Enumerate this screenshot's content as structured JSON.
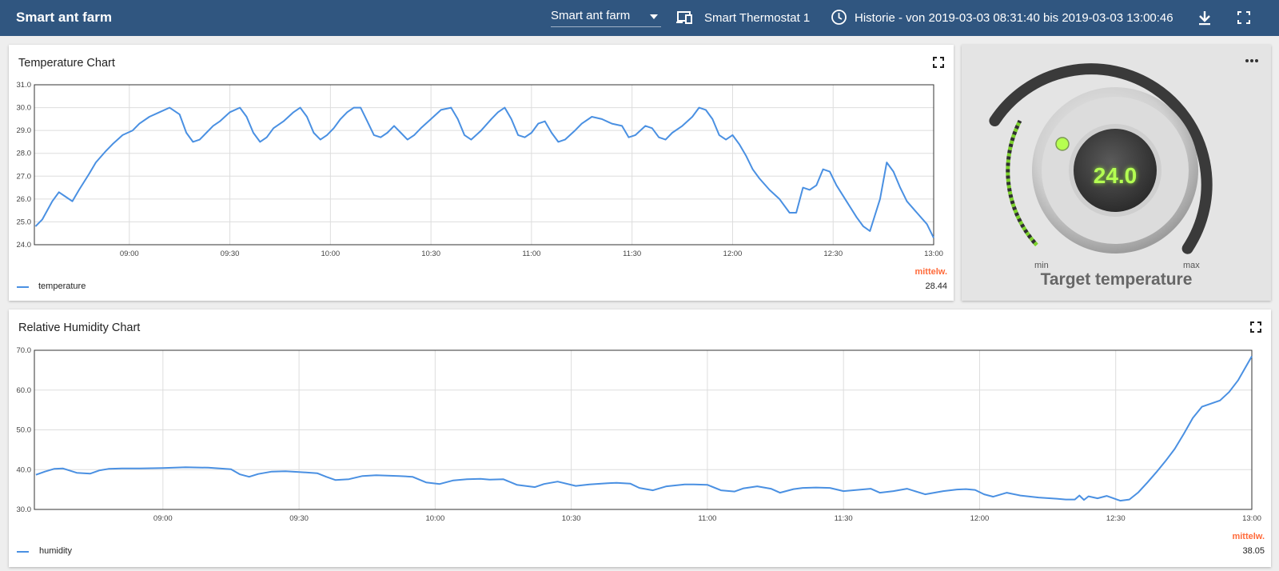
{
  "header": {
    "title": "Smart ant farm",
    "dashboard_select": {
      "value": "Smart ant farm"
    },
    "device": {
      "icon": "devices-icon",
      "label": "Smart Thermostat 1"
    },
    "history": {
      "icon": "clock-icon",
      "label": "Historie - von 2019-03-03 08:31:40 bis 2019-03-03 13:00:46"
    },
    "actions": {
      "download_icon": "download-icon",
      "fullscreen_icon": "fullscreen-icon"
    }
  },
  "temperature_card": {
    "title": "Temperature Chart",
    "legend": "temperature",
    "avg_label": "mittelw.",
    "avg_value": "28.44"
  },
  "humidity_card": {
    "title": "Relative Humidity Chart",
    "legend": "humidity",
    "avg_label": "mittelw.",
    "avg_value": "38.05"
  },
  "thermostat": {
    "value": "24.0",
    "min_label": "min",
    "max_label": "max",
    "label": "Target temperature"
  },
  "colors": {
    "header_bg": "#305680",
    "series": "#4a90e2",
    "avg_label": "#ff6a3a",
    "thermo_value": "#b4ff52"
  },
  "chart_data": [
    {
      "type": "line",
      "title": "Temperature Chart",
      "x_ticks": [
        "09:00",
        "09:30",
        "10:00",
        "10:30",
        "11:00",
        "11:30",
        "12:00",
        "12:30",
        "13:00"
      ],
      "y_ticks": [
        "24.0",
        "25.0",
        "26.0",
        "27.0",
        "28.0",
        "29.0",
        "30.0",
        "31.0"
      ],
      "ylim": [
        24,
        31
      ],
      "xlim": [
        "08:31:40",
        "13:00:00"
      ],
      "grid": true,
      "legend": "bottom-left",
      "series": [
        {
          "name": "temperature",
          "x": [
            "08:32",
            "08:34",
            "08:37",
            "08:39",
            "08:41",
            "08:43",
            "08:45",
            "08:48",
            "08:50",
            "08:53",
            "08:55",
            "08:58",
            "09:01",
            "09:03",
            "09:06",
            "09:09",
            "09:12",
            "09:15",
            "09:17",
            "09:19",
            "09:21",
            "09:23",
            "09:25",
            "09:27",
            "09:30",
            "09:33",
            "09:35",
            "09:37",
            "09:39",
            "09:41",
            "09:43",
            "09:46",
            "09:49",
            "09:51",
            "09:53",
            "09:55",
            "09:57",
            "09:59",
            "10:01",
            "10:03",
            "10:05",
            "10:07",
            "10:09",
            "10:11",
            "10:13",
            "10:15",
            "10:17",
            "10:19",
            "10:21",
            "10:23",
            "10:25",
            "10:27",
            "10:30",
            "10:33",
            "10:36",
            "10:38",
            "10:40",
            "10:42",
            "10:45",
            "10:48",
            "10:50",
            "10:52",
            "10:54",
            "10:56",
            "10:58",
            "11:00",
            "11:02",
            "11:04",
            "11:06",
            "11:08",
            "11:10",
            "11:13",
            "11:15",
            "11:18",
            "11:21",
            "11:24",
            "11:27",
            "11:29",
            "11:31",
            "11:34",
            "11:36",
            "11:38",
            "11:40",
            "11:42",
            "11:45",
            "11:48",
            "11:50",
            "11:52",
            "11:54",
            "11:56",
            "11:58",
            "12:00",
            "12:02",
            "12:04",
            "12:06",
            "12:08",
            "12:11",
            "12:14",
            "12:17",
            "12:19",
            "12:21",
            "12:23",
            "12:25",
            "12:27",
            "12:29",
            "12:31",
            "12:34",
            "12:37",
            "12:39",
            "12:41",
            "12:44",
            "12:46",
            "12:48",
            "12:50",
            "12:52",
            "12:55",
            "12:58",
            "13:00"
          ],
          "y": [
            24.8,
            25.1,
            25.9,
            26.3,
            26.1,
            25.9,
            26.4,
            27.1,
            27.6,
            28.1,
            28.4,
            28.8,
            29.0,
            29.3,
            29.6,
            29.8,
            30.0,
            29.7,
            28.9,
            28.5,
            28.6,
            28.9,
            29.2,
            29.4,
            29.8,
            30.0,
            29.6,
            28.9,
            28.5,
            28.7,
            29.1,
            29.4,
            29.8,
            30.0,
            29.6,
            28.9,
            28.6,
            28.8,
            29.1,
            29.5,
            29.8,
            30.0,
            30.0,
            29.4,
            28.8,
            28.7,
            28.9,
            29.2,
            28.9,
            28.6,
            28.8,
            29.1,
            29.5,
            29.9,
            30.0,
            29.5,
            28.8,
            28.6,
            29.0,
            29.5,
            29.8,
            30.0,
            29.5,
            28.8,
            28.7,
            28.9,
            29.3,
            29.4,
            28.9,
            28.5,
            28.6,
            29.0,
            29.3,
            29.6,
            29.5,
            29.3,
            29.2,
            28.7,
            28.8,
            29.2,
            29.1,
            28.7,
            28.6,
            28.9,
            29.2,
            29.6,
            30.0,
            29.9,
            29.5,
            28.8,
            28.6,
            28.8,
            28.4,
            27.9,
            27.3,
            26.9,
            26.4,
            26.0,
            25.4,
            25.4,
            26.5,
            26.4,
            26.6,
            27.3,
            27.2,
            26.6,
            25.9,
            25.2,
            24.8,
            24.6,
            26.0,
            27.6,
            27.2,
            26.5,
            25.9,
            25.4,
            24.9,
            24.3
          ]
        }
      ]
    },
    {
      "type": "line",
      "title": "Relative Humidity Chart",
      "x_ticks": [
        "09:00",
        "09:30",
        "10:00",
        "10:30",
        "11:00",
        "11:30",
        "12:00",
        "12:30",
        "13:00"
      ],
      "y_ticks": [
        "30.0",
        "40.0",
        "50.0",
        "60.0",
        "70.0"
      ],
      "ylim": [
        30,
        70
      ],
      "xlim": [
        "08:31:40",
        "13:00:00"
      ],
      "grid": true,
      "legend": "bottom-left",
      "series": [
        {
          "name": "humidity",
          "x": [
            "08:32",
            "08:34",
            "08:36",
            "08:38",
            "08:41",
            "08:44",
            "08:46",
            "08:48",
            "08:51",
            "08:55",
            "09:00",
            "09:05",
            "09:10",
            "09:15",
            "09:17",
            "09:19",
            "09:21",
            "09:24",
            "09:27",
            "09:30",
            "09:34",
            "09:36",
            "09:38",
            "09:41",
            "09:44",
            "09:47",
            "09:52",
            "09:55",
            "09:58",
            "10:01",
            "10:04",
            "10:07",
            "10:10",
            "10:12",
            "10:15",
            "10:18",
            "10:22",
            "10:24",
            "10:27",
            "10:31",
            "10:34",
            "10:38",
            "10:40",
            "10:43",
            "10:45",
            "10:48",
            "10:51",
            "10:55",
            "10:57",
            "11:00",
            "11:03",
            "11:06",
            "11:08",
            "11:11",
            "11:14",
            "11:16",
            "11:19",
            "11:21",
            "11:24",
            "11:27",
            "11:30",
            "11:33",
            "11:36",
            "11:38",
            "11:41",
            "11:44",
            "11:48",
            "11:52",
            "11:55",
            "11:57",
            "11:59",
            "12:01",
            "12:03",
            "12:06",
            "12:09",
            "12:13",
            "12:17",
            "12:19",
            "12:21",
            "12:22",
            "12:23",
            "12:24",
            "12:26",
            "12:28",
            "12:30",
            "12:31",
            "12:33",
            "12:35",
            "12:37",
            "12:39",
            "12:41",
            "12:43",
            "12:45",
            "12:47",
            "12:49",
            "12:51",
            "12:53",
            "12:55",
            "12:57",
            "13:00"
          ],
          "y": [
            38.7,
            39.5,
            40.2,
            40.3,
            39.2,
            39.0,
            39.8,
            40.2,
            40.3,
            40.3,
            40.4,
            40.6,
            40.5,
            40.1,
            38.8,
            38.2,
            38.9,
            39.5,
            39.6,
            39.4,
            39.1,
            38.2,
            37.4,
            37.6,
            38.4,
            38.6,
            38.4,
            38.2,
            36.8,
            36.4,
            37.3,
            37.6,
            37.7,
            37.5,
            37.6,
            36.2,
            35.6,
            36.4,
            37.0,
            35.9,
            36.3,
            36.6,
            36.7,
            36.5,
            35.4,
            34.8,
            35.8,
            36.3,
            36.3,
            36.2,
            34.8,
            34.5,
            35.3,
            35.8,
            35.2,
            34.2,
            35.1,
            35.4,
            35.5,
            35.4,
            34.6,
            34.9,
            35.2,
            34.2,
            34.6,
            35.2,
            33.8,
            34.6,
            35.0,
            35.1,
            34.9,
            33.8,
            33.2,
            34.2,
            33.5,
            33.0,
            32.7,
            32.5,
            32.5,
            33.5,
            32.4,
            33.3,
            32.8,
            33.4,
            32.6,
            32.2,
            32.5,
            34.3,
            36.8,
            39.4,
            42.2,
            45.2,
            49.0,
            53.0,
            55.8,
            56.6,
            57.4,
            59.5,
            62.5,
            68.5
          ]
        }
      ]
    }
  ]
}
